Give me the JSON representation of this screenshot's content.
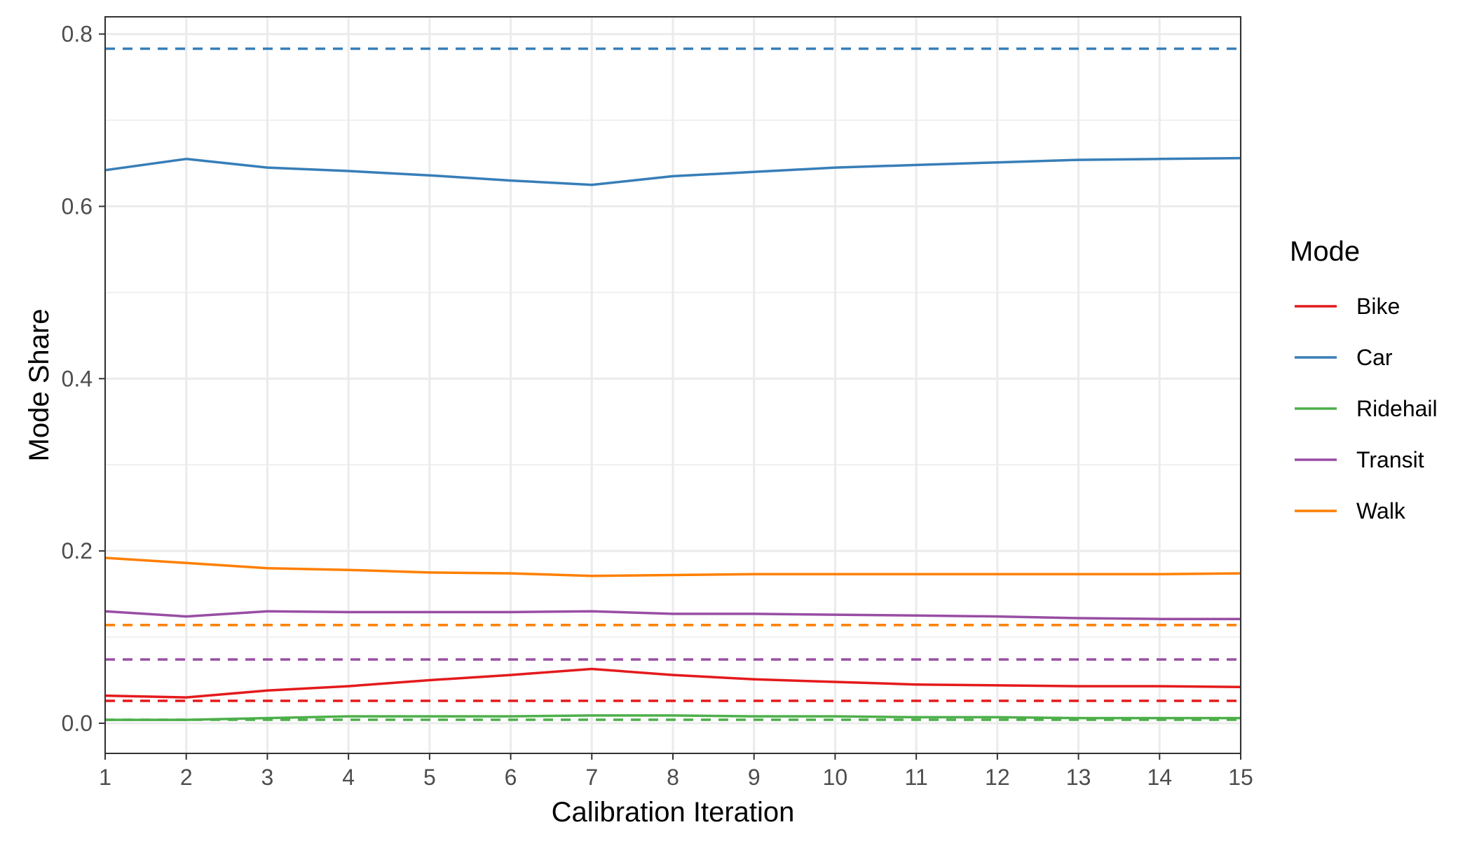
{
  "chart_data": {
    "type": "line",
    "title": "",
    "xlabel": "Calibration Iteration",
    "ylabel": "Mode Share",
    "xlim": [
      1,
      15
    ],
    "ylim": [
      -0.035,
      0.82
    ],
    "x_ticks": [
      1,
      2,
      3,
      4,
      5,
      6,
      7,
      8,
      9,
      10,
      11,
      12,
      13,
      14,
      15
    ],
    "y_ticks": [
      0.0,
      0.2,
      0.4,
      0.6,
      0.8
    ],
    "y_tick_labels": [
      "0.0",
      "0.2",
      "0.4",
      "0.6",
      "0.8"
    ],
    "grid": true,
    "legend": {
      "title": "Mode",
      "position": "right"
    },
    "x": [
      1,
      2,
      3,
      4,
      5,
      6,
      7,
      8,
      9,
      10,
      11,
      12,
      13,
      14,
      15
    ],
    "series": [
      {
        "name": "Bike",
        "color": "#e41a1c",
        "target": 0.026,
        "values": [
          0.032,
          0.03,
          0.038,
          0.043,
          0.05,
          0.056,
          0.063,
          0.056,
          0.051,
          0.048,
          0.045,
          0.044,
          0.043,
          0.043,
          0.042
        ]
      },
      {
        "name": "Car",
        "color": "#377eb8",
        "target": 0.783,
        "values": [
          0.642,
          0.655,
          0.645,
          0.641,
          0.636,
          0.63,
          0.625,
          0.635,
          0.64,
          0.645,
          0.648,
          0.651,
          0.654,
          0.655,
          0.656
        ]
      },
      {
        "name": "Ridehail",
        "color": "#4daf4a",
        "target": 0.004,
        "values": [
          0.004,
          0.004,
          0.006,
          0.008,
          0.008,
          0.008,
          0.009,
          0.009,
          0.008,
          0.008,
          0.007,
          0.007,
          0.006,
          0.006,
          0.006
        ]
      },
      {
        "name": "Transit",
        "color": "#984ea3",
        "target": 0.074,
        "values": [
          0.13,
          0.124,
          0.13,
          0.129,
          0.129,
          0.129,
          0.13,
          0.127,
          0.127,
          0.126,
          0.125,
          0.124,
          0.122,
          0.121,
          0.121
        ]
      },
      {
        "name": "Walk",
        "color": "#ff7f00",
        "target": 0.114,
        "values": [
          0.192,
          0.186,
          0.18,
          0.178,
          0.175,
          0.174,
          0.171,
          0.172,
          0.173,
          0.173,
          0.173,
          0.173,
          0.173,
          0.173,
          0.174
        ]
      }
    ]
  }
}
